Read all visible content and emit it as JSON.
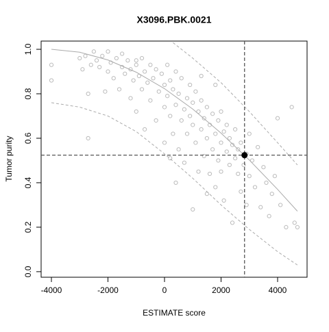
{
  "chart_data": {
    "type": "scatter",
    "title": "X3096.PBK.0021",
    "x_label": "ESTIMATE score",
    "y_label": "Tumor purity",
    "xlim": [
      -4364,
      5042
    ],
    "ylim": [
      -0.025,
      1.037
    ],
    "xticks": [
      -4000,
      -2000,
      0,
      2000,
      4000
    ],
    "yticks": [
      {
        "value": 0,
        "label": "0.0"
      },
      0.2,
      0.4,
      0.6,
      0.8,
      {
        "value": 1,
        "label": "1.0"
      }
    ],
    "points": {
      "color": "#bbbbbb",
      "x": [
        -4000,
        -4000,
        -3000,
        -2900,
        -2800,
        -2700,
        -2700,
        -2600,
        -2500,
        -2400,
        -2300,
        -2200,
        -2100,
        -2000,
        -2000,
        -1900,
        -1800,
        -1700,
        -1600,
        -1500,
        -1500,
        -1400,
        -1300,
        -1200,
        -1200,
        -1100,
        -1000,
        -1000,
        -900,
        -800,
        -800,
        -700,
        -700,
        -600,
        -500,
        -500,
        -400,
        -300,
        -300,
        -200,
        -100,
        0,
        0,
        0,
        100,
        100,
        200,
        200,
        300,
        300,
        400,
        400,
        500,
        500,
        600,
        600,
        700,
        700,
        800,
        800,
        900,
        900,
        1000,
        1000,
        1000,
        1100,
        1100,
        1200,
        1200,
        1300,
        1300,
        1400,
        1400,
        1500,
        1500,
        1500,
        1600,
        1600,
        1700,
        1700,
        1800,
        1800,
        1900,
        1900,
        2000,
        2000,
        2000,
        2100,
        2100,
        2200,
        2200,
        2300,
        2300,
        2400,
        2400,
        2500,
        2500,
        2600,
        2600,
        2700,
        2700,
        2800,
        2900,
        2900,
        3000,
        3000,
        3100,
        3200,
        3300,
        3400,
        3500,
        3600,
        3700,
        3800,
        3900,
        4000,
        4100,
        4300,
        4500,
        4600,
        4700,
        -1000,
        200,
        400,
        1300,
        1800
      ],
      "y": [
        0.93,
        0.86,
        0.96,
        0.91,
        0.97,
        0.8,
        0.6,
        0.93,
        0.99,
        0.95,
        0.92,
        0.97,
        0.81,
        0.9,
        0.99,
        0.94,
        0.87,
        0.96,
        0.82,
        0.92,
        0.98,
        0.89,
        0.95,
        0.78,
        0.91,
        0.86,
        0.93,
        0.72,
        0.88,
        0.96,
        0.82,
        0.64,
        0.9,
        0.85,
        0.93,
        0.77,
        0.87,
        0.68,
        0.91,
        0.81,
        0.89,
        0.74,
        0.84,
        0.58,
        0.93,
        0.79,
        0.7,
        0.86,
        0.62,
        0.82,
        0.9,
        0.75,
        0.55,
        0.8,
        0.68,
        0.87,
        0.73,
        0.49,
        0.78,
        0.62,
        0.84,
        0.7,
        0.66,
        0.76,
        0.28,
        0.58,
        0.81,
        0.72,
        0.45,
        0.64,
        0.77,
        0.52,
        0.69,
        0.74,
        0.6,
        0.35,
        0.66,
        0.44,
        0.71,
        0.55,
        0.62,
        0.38,
        0.68,
        0.5,
        0.58,
        0.45,
        0.72,
        0.63,
        0.32,
        0.54,
        0.66,
        0.48,
        0.6,
        0.57,
        0.22,
        0.51,
        0.64,
        0.44,
        0.55,
        0.58,
        0.36,
        0.48,
        0.53,
        0.3,
        0.43,
        0.62,
        0.5,
        0.38,
        0.56,
        0.29,
        0.47,
        0.4,
        0.25,
        0.35,
        0.43,
        0.69,
        0.3,
        0.2,
        0.74,
        0.22,
        0.2,
        0.95,
        0.51,
        0.4,
        0.88,
        0.84
      ]
    },
    "fit": {
      "color": "#aaaaaa",
      "x": [
        -4000,
        -3000,
        -2000,
        -1000,
        0,
        1000,
        2000,
        3000,
        4000,
        4700
      ],
      "y": [
        1.0,
        0.987,
        0.952,
        0.897,
        0.823,
        0.731,
        0.623,
        0.502,
        0.37,
        0.272
      ]
    },
    "bands": [
      {
        "color": "#aaaaaa",
        "x": [
          -4000,
          -3000,
          -2000,
          -1000,
          0,
          1000,
          2000,
          3000,
          4000,
          4700
        ],
        "y": [
          0.76,
          0.74,
          0.7,
          0.63,
          0.53,
          0.42,
          0.3,
          0.19,
          0.09,
          0.03
        ]
      },
      {
        "color": "#aaaaaa",
        "x": [
          300,
          1000,
          2000,
          3000,
          4000,
          4700
        ],
        "y": [
          1.03,
          0.96,
          0.85,
          0.72,
          0.58,
          0.48
        ]
      }
    ],
    "sample": {
      "color": "#000000",
      "x": 2830,
      "y": 0.524
    }
  }
}
